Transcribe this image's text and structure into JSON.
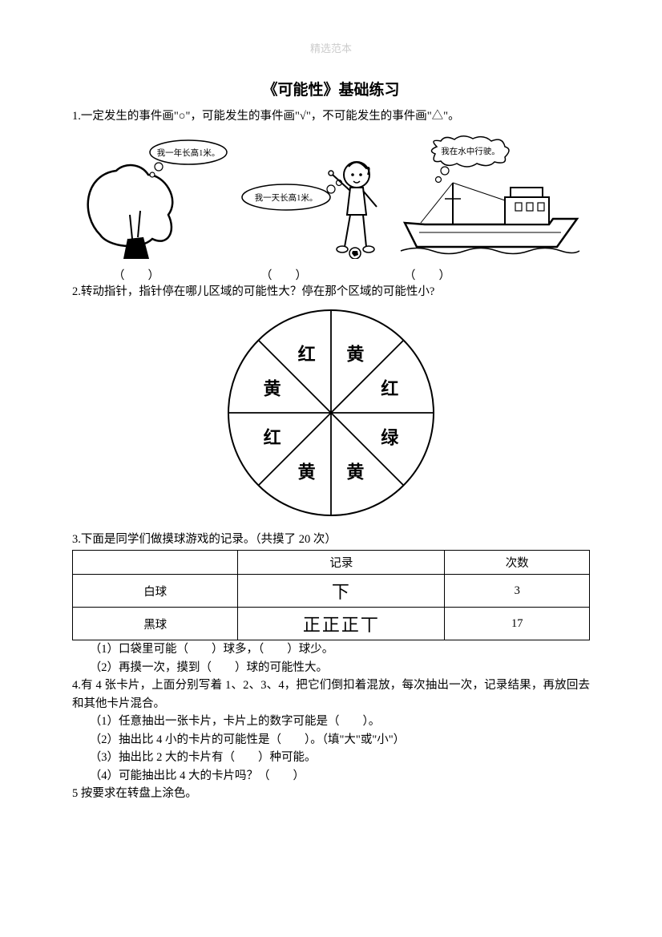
{
  "header": "精选范本",
  "title": "《可能性》基础练习",
  "q1": {
    "prompt": "1.一定发生的事件画\"○\"，可能发生的事件画\"√\"，不可能发生的事件画\"△\"。",
    "bubbles": {
      "tree": "我一年长高1米。",
      "boy": "我一天长高1米。",
      "ship": "我在水中行驶。"
    },
    "blank": "（　　）"
  },
  "q2": {
    "prompt": "2.转动指针，指针停在哪儿区域的可能性大？停在那个区域的可能性小?",
    "spinner_sectors": [
      "黄",
      "红",
      "绿",
      "黄",
      "黄",
      "红",
      "黄",
      "红"
    ],
    "sector_fontsize": 22
  },
  "q3": {
    "prompt": "3.下面是同学们做摸球游戏的记录。（共摸了 20 次）",
    "table": {
      "headers": [
        "",
        "记录",
        "次数"
      ],
      "rows": [
        {
          "label": "白球",
          "tally": "下",
          "count": "3"
        },
        {
          "label": "黑球",
          "tally": "正正正丅",
          "count": "17"
        }
      ]
    },
    "sub": [
      "（1）口袋里可能（　　）球多，（　　）球少。",
      "（2）再摸一次，摸到（　　）球的可能性大。"
    ]
  },
  "q4": {
    "prompt": "4.有 4 张卡片，上面分别写着 1、2、3、4，把它们倒扣着混放，每次抽出一次，记录结果，再放回去和其他卡片混合。",
    "sub": [
      "（1）任意抽出一张卡片，卡片上的数字可能是（　　）。",
      "（2）抽出比 4 小的卡片的可能性是（　　）。（填\"大\"或\"小\"）",
      "（3）抽出比 2 大的卡片有（　　）种可能。",
      "（4）可能抽出比 4 大的卡片吗？（　　）"
    ]
  },
  "q5": {
    "prompt": "5 按要求在转盘上涂色。"
  }
}
